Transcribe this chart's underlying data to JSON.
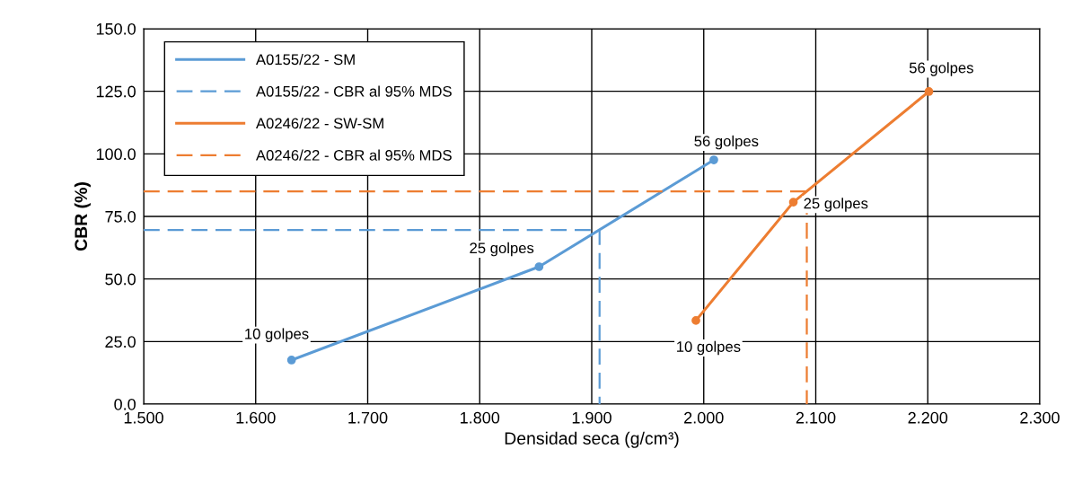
{
  "chart_data": {
    "type": "line",
    "xlabel": "Densidad seca (g/cm³)",
    "ylabel": "CBR (%)",
    "xlim": [
      1.5,
      2.3
    ],
    "xticks": [
      {
        "value": 1.5,
        "label": "1.500"
      },
      {
        "value": 1.6,
        "label": "1.600"
      },
      {
        "value": 1.7,
        "label": "1.700"
      },
      {
        "value": 1.8,
        "label": "1.800"
      },
      {
        "value": 1.9,
        "label": "1.900"
      },
      {
        "value": 2.0,
        "label": "2.000"
      },
      {
        "value": 2.1,
        "label": "2.100"
      },
      {
        "value": 2.2,
        "label": "2.200"
      },
      {
        "value": 2.3,
        "label": "2.300"
      }
    ],
    "ylim": [
      0,
      150
    ],
    "yticks": [
      {
        "value": 0,
        "label": "0.0"
      },
      {
        "value": 25,
        "label": "25.0"
      },
      {
        "value": 50,
        "label": "50.0"
      },
      {
        "value": 75,
        "label": "75.0"
      },
      {
        "value": 100,
        "label": "100.0"
      },
      {
        "value": 125,
        "label": "125.0"
      },
      {
        "value": 150,
        "label": "150.0"
      }
    ],
    "grid": true,
    "legend": "top left",
    "marker": "circle",
    "line_style": "solid",
    "series": [
      {
        "name": "A0155/22 - SM",
        "color": "#5b9bd5",
        "x": [
          1.632,
          1.853,
          2.009
        ],
        "values": [
          17.6,
          54.9,
          97.6
        ]
      },
      {
        "name": "A0155/22 - CBR al 95% MDS",
        "color": "#5b9bd5",
        "line_style": "dashed",
        "marker": "none",
        "x": [
          1.5,
          1.907,
          1.907
        ],
        "values": [
          69.6,
          69.6,
          0
        ]
      },
      {
        "name": "A0246/22 - SW-SM",
        "color": "#ed7d31",
        "x": [
          1.993,
          2.08,
          2.201
        ],
        "values": [
          33.4,
          80.7,
          124.9
        ]
      },
      {
        "name": "A0246/22 - CBR al 95% MDS",
        "color": "#ed7d31",
        "line_style": "dashed",
        "marker": "none",
        "x": [
          1.5,
          2.092,
          2.092
        ],
        "values": [
          85.0,
          85.0,
          0
        ]
      }
    ],
    "annotations": [
      {
        "text": "10 golpes",
        "x": 1.632,
        "y": 17.6
      },
      {
        "text": "25 golpes",
        "x": 1.853,
        "y": 54.9
      },
      {
        "text": "56 golpes",
        "x": 2.009,
        "y": 97.6
      },
      {
        "text": "10 golpes",
        "x": 1.993,
        "y": 33.4
      },
      {
        "text": "25 golpes",
        "x": 2.08,
        "y": 80.7
      },
      {
        "text": "56 golpes",
        "x": 2.201,
        "y": 124.9
      }
    ]
  }
}
